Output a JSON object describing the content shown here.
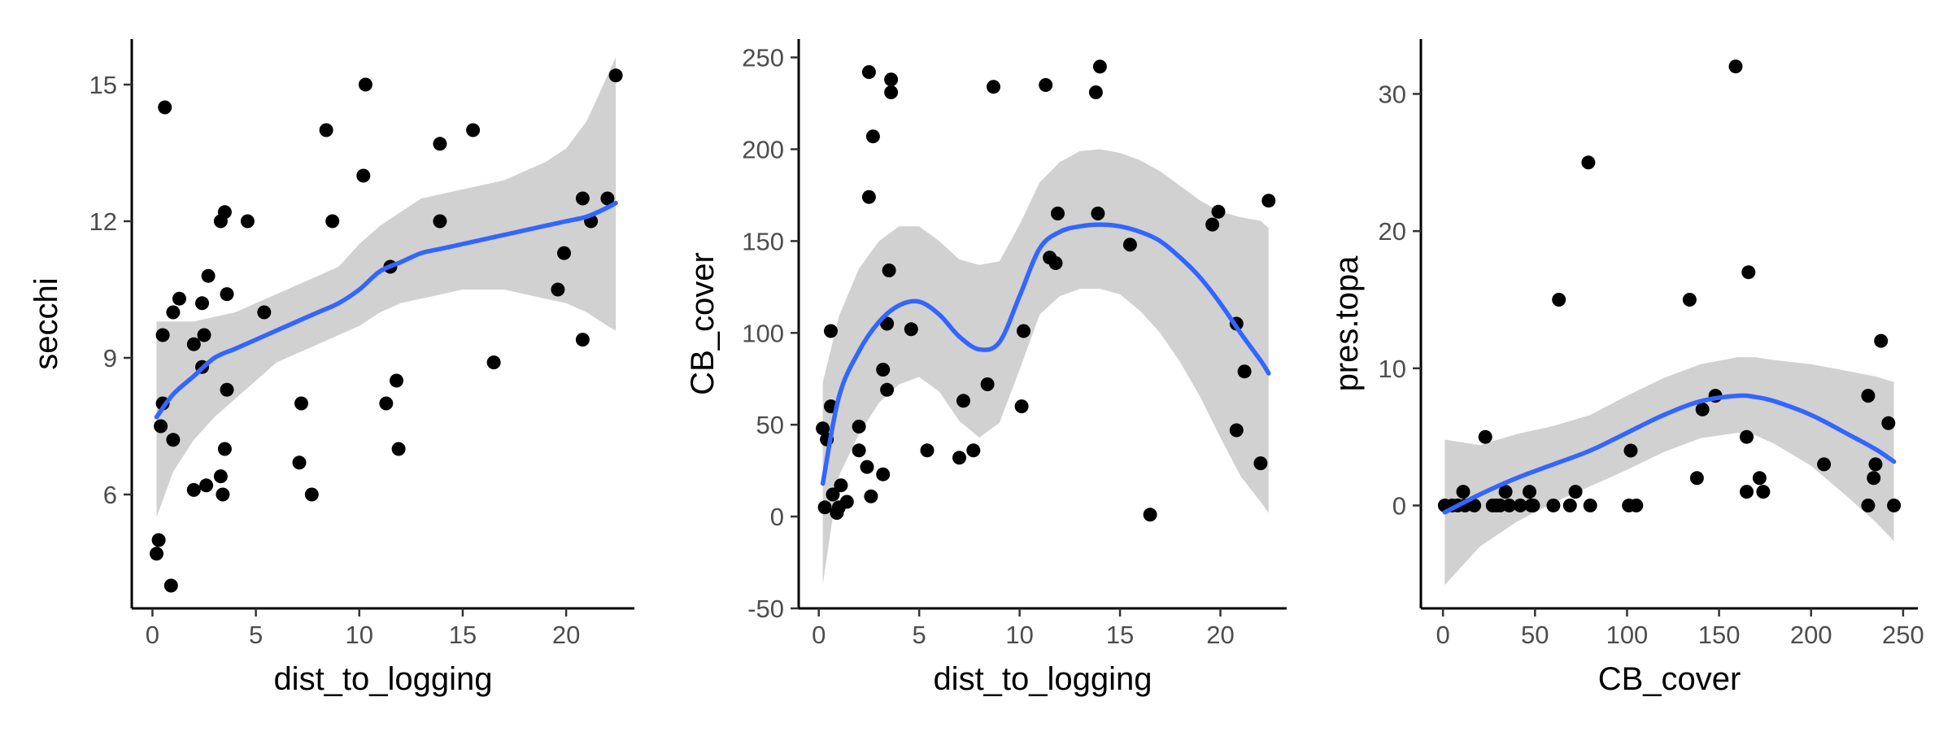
{
  "chart_data": [
    {
      "type": "scatter",
      "xlabel": "dist_to_logging",
      "ylabel": "secchi",
      "xlim": [
        -1,
        23.3
      ],
      "ylim": [
        3.5,
        16
      ],
      "x_ticks": [
        0,
        5,
        10,
        15,
        20
      ],
      "y_ticks": [
        6,
        9,
        12,
        15
      ],
      "grid": false,
      "points": [
        [
          0.2,
          4.7
        ],
        [
          0.3,
          5.0
        ],
        [
          0.9,
          4.0
        ],
        [
          0.6,
          14.5
        ],
        [
          0.5,
          9.5
        ],
        [
          0.5,
          8.0
        ],
        [
          0.4,
          7.5
        ],
        [
          1.0,
          7.2
        ],
        [
          1.0,
          10.0
        ],
        [
          1.3,
          10.3
        ],
        [
          2.0,
          6.1
        ],
        [
          2.6,
          6.2
        ],
        [
          3.4,
          6.0
        ],
        [
          3.3,
          6.4
        ],
        [
          3.5,
          7.0
        ],
        [
          2.0,
          9.3
        ],
        [
          2.4,
          8.8
        ],
        [
          2.5,
          9.5
        ],
        [
          2.4,
          10.2
        ],
        [
          2.7,
          10.8
        ],
        [
          3.3,
          12.0
        ],
        [
          3.5,
          12.2
        ],
        [
          3.6,
          10.4
        ],
        [
          3.6,
          8.3
        ],
        [
          4.6,
          12.0
        ],
        [
          5.4,
          10.0
        ],
        [
          7.1,
          6.7
        ],
        [
          7.2,
          8.0
        ],
        [
          7.7,
          6.0
        ],
        [
          8.4,
          14.0
        ],
        [
          8.7,
          12.0
        ],
        [
          10.2,
          13.0
        ],
        [
          10.3,
          15.0
        ],
        [
          11.3,
          8.0
        ],
        [
          11.8,
          8.5
        ],
        [
          11.9,
          7.0
        ],
        [
          11.5,
          11.0
        ],
        [
          13.9,
          13.7
        ],
        [
          13.9,
          12.0
        ],
        [
          15.5,
          14.0
        ],
        [
          16.5,
          8.9
        ],
        [
          19.6,
          10.5
        ],
        [
          19.9,
          11.3
        ],
        [
          20.8,
          9.4
        ],
        [
          20.8,
          12.5
        ],
        [
          21.2,
          12.0
        ],
        [
          22.0,
          12.5
        ],
        [
          22.4,
          15.2
        ]
      ],
      "smooth": {
        "x": [
          0.2,
          1,
          2,
          3,
          4,
          5,
          6,
          7,
          8,
          9,
          10,
          11,
          12,
          13,
          14,
          15,
          16,
          17,
          18,
          19,
          20,
          21,
          22,
          22.4
        ],
        "fit": [
          7.7,
          8.2,
          8.6,
          9.0,
          9.2,
          9.4,
          9.6,
          9.8,
          10.0,
          10.2,
          10.5,
          10.9,
          11.1,
          11.3,
          11.4,
          11.5,
          11.6,
          11.7,
          11.8,
          11.9,
          12.0,
          12.1,
          12.3,
          12.4
        ],
        "lower": [
          5.5,
          6.5,
          7.2,
          7.7,
          8.1,
          8.5,
          8.9,
          9.1,
          9.3,
          9.5,
          9.7,
          10.0,
          10.2,
          10.3,
          10.4,
          10.5,
          10.5,
          10.5,
          10.4,
          10.3,
          10.2,
          10.0,
          9.7,
          9.6
        ],
        "upper": [
          9.8,
          9.8,
          9.8,
          9.9,
          10.0,
          10.2,
          10.4,
          10.6,
          10.8,
          11.0,
          11.5,
          11.9,
          12.2,
          12.5,
          12.6,
          12.7,
          12.8,
          12.9,
          13.1,
          13.3,
          13.6,
          14.2,
          15.2,
          15.6
        ]
      }
    },
    {
      "type": "scatter",
      "xlabel": "dist_to_logging",
      "ylabel": "CB_cover",
      "xlim": [
        -1,
        23.3
      ],
      "ylim": [
        -50,
        260
      ],
      "x_ticks": [
        0,
        5,
        10,
        15,
        20
      ],
      "y_ticks": [
        -50,
        0,
        50,
        100,
        150,
        200,
        250
      ],
      "grid": false,
      "points": [
        [
          0.2,
          48
        ],
        [
          0.3,
          5
        ],
        [
          0.4,
          42
        ],
        [
          0.6,
          60
        ],
        [
          0.6,
          101
        ],
        [
          0.7,
          12
        ],
        [
          0.9,
          2
        ],
        [
          1.0,
          5
        ],
        [
          1.1,
          17
        ],
        [
          1.4,
          8
        ],
        [
          2.0,
          49
        ],
        [
          2.0,
          36
        ],
        [
          2.4,
          27
        ],
        [
          2.5,
          174
        ],
        [
          2.5,
          242
        ],
        [
          2.6,
          11
        ],
        [
          2.7,
          207
        ],
        [
          3.2,
          23
        ],
        [
          3.2,
          80
        ],
        [
          3.4,
          105
        ],
        [
          3.4,
          69
        ],
        [
          3.5,
          134
        ],
        [
          3.6,
          231
        ],
        [
          3.6,
          238
        ],
        [
          4.6,
          102
        ],
        [
          5.4,
          36
        ],
        [
          7.0,
          32
        ],
        [
          7.2,
          63
        ],
        [
          7.7,
          36
        ],
        [
          8.4,
          72
        ],
        [
          8.7,
          234
        ],
        [
          10.1,
          60
        ],
        [
          10.2,
          101
        ],
        [
          11.3,
          235
        ],
        [
          11.5,
          141
        ],
        [
          11.8,
          138
        ],
        [
          11.9,
          165
        ],
        [
          13.8,
          231
        ],
        [
          13.9,
          165
        ],
        [
          14.0,
          245
        ],
        [
          15.5,
          148
        ],
        [
          16.5,
          1
        ],
        [
          19.6,
          159
        ],
        [
          19.9,
          166
        ],
        [
          20.8,
          105
        ],
        [
          20.8,
          47
        ],
        [
          21.2,
          79
        ],
        [
          22.0,
          29
        ],
        [
          22.4,
          172
        ]
      ],
      "smooth": {
        "x": [
          0.2,
          1,
          2,
          3,
          4,
          5,
          6,
          7,
          8,
          9,
          10,
          11,
          12,
          13,
          14,
          15,
          16,
          17,
          18,
          19,
          20,
          21,
          22,
          22.4
        ],
        "fit": [
          18,
          65,
          90,
          106,
          115,
          117,
          110,
          98,
          91,
          95,
          120,
          146,
          155,
          158,
          159,
          158,
          155,
          150,
          141,
          130,
          116,
          100,
          85,
          78
        ],
        "lower": [
          -37,
          22,
          45,
          62,
          72,
          76,
          68,
          52,
          43,
          51,
          80,
          110,
          120,
          124,
          124,
          121,
          112,
          100,
          84,
          65,
          43,
          22,
          8,
          2
        ],
        "upper": [
          73,
          109,
          135,
          150,
          158,
          158,
          150,
          140,
          137,
          139,
          159,
          182,
          193,
          199,
          200,
          198,
          194,
          188,
          180,
          172,
          166,
          163,
          161,
          157
        ]
      }
    },
    {
      "type": "scatter",
      "xlabel": "CB_cover",
      "ylabel": "pres.topa",
      "xlim": [
        -12,
        258
      ],
      "ylim": [
        -7.5,
        34
      ],
      "x_ticks": [
        0,
        50,
        100,
        150,
        200,
        250
      ],
      "y_ticks": [
        0,
        10,
        20,
        30
      ],
      "grid": false,
      "points": [
        [
          1,
          0
        ],
        [
          5,
          0
        ],
        [
          8,
          0
        ],
        [
          11,
          1
        ],
        [
          12,
          0
        ],
        [
          17,
          0
        ],
        [
          23,
          5
        ],
        [
          27,
          0
        ],
        [
          29,
          0
        ],
        [
          31,
          0
        ],
        [
          34,
          1
        ],
        [
          36,
          0
        ],
        [
          42,
          0
        ],
        [
          47,
          1
        ],
        [
          48,
          0
        ],
        [
          49,
          0
        ],
        [
          60,
          0
        ],
        [
          63,
          15
        ],
        [
          69,
          0
        ],
        [
          72,
          1
        ],
        [
          79,
          25
        ],
        [
          80,
          0
        ],
        [
          101,
          0
        ],
        [
          102,
          4
        ],
        [
          105,
          0
        ],
        [
          134,
          15
        ],
        [
          138,
          2
        ],
        [
          141,
          7
        ],
        [
          148,
          8
        ],
        [
          159,
          32
        ],
        [
          165,
          5
        ],
        [
          165,
          1
        ],
        [
          166,
          17
        ],
        [
          172,
          2
        ],
        [
          174,
          1
        ],
        [
          207,
          3
        ],
        [
          231,
          8
        ],
        [
          231,
          0
        ],
        [
          234,
          2
        ],
        [
          235,
          3
        ],
        [
          238,
          12
        ],
        [
          242,
          6
        ],
        [
          245,
          0
        ]
      ],
      "smooth": {
        "x": [
          1,
          20,
          40,
          60,
          80,
          100,
          120,
          140,
          160,
          170,
          180,
          200,
          220,
          235,
          245
        ],
        "fit": [
          -0.5,
          0.8,
          2.0,
          3.0,
          4.0,
          5.3,
          6.6,
          7.6,
          8.0,
          7.9,
          7.6,
          6.6,
          5.2,
          4.1,
          3.2
        ],
        "lower": [
          -5.8,
          -3.0,
          -1.2,
          0.2,
          1.4,
          2.6,
          3.9,
          4.9,
          5.3,
          5.1,
          4.5,
          2.9,
          0.6,
          -1.2,
          -2.6
        ],
        "upper": [
          4.8,
          4.4,
          5.2,
          5.8,
          6.6,
          8.0,
          9.3,
          10.3,
          10.8,
          10.8,
          10.6,
          10.3,
          9.8,
          9.4,
          9.0
        ]
      }
    }
  ]
}
